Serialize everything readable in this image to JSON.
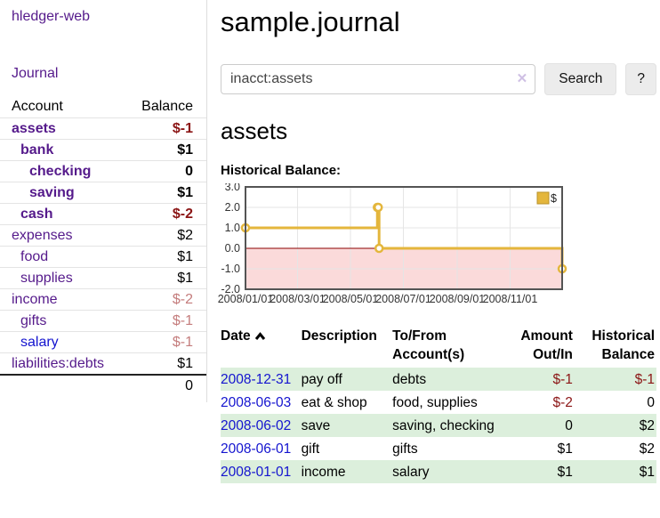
{
  "sidebar": {
    "app_title": "hledger-web",
    "journal_link": "Journal",
    "columns": {
      "account": "Account",
      "balance": "Balance"
    },
    "accounts": [
      {
        "name": "assets",
        "balance": "$-1"
      },
      {
        "name": "bank",
        "balance": "$1"
      },
      {
        "name": "checking",
        "balance": "0"
      },
      {
        "name": "saving",
        "balance": "$1"
      },
      {
        "name": "cash",
        "balance": "$-2"
      },
      {
        "name": "expenses",
        "balance": "$2"
      },
      {
        "name": "food",
        "balance": "$1"
      },
      {
        "name": "supplies",
        "balance": "$1"
      },
      {
        "name": "income",
        "balance": "$-2"
      },
      {
        "name": "gifts",
        "balance": "$-1"
      },
      {
        "name": "salary",
        "balance": "$-1"
      },
      {
        "name": "liabilities:debts",
        "balance": "$1"
      }
    ],
    "total": "0"
  },
  "header": {
    "title": "sample.journal"
  },
  "search": {
    "value": "inacct:assets",
    "clear_icon": "✕",
    "search_button": "Search",
    "help_button": "?"
  },
  "account_page": {
    "heading": "assets",
    "chart_label": "Historical Balance:"
  },
  "chart_data": {
    "type": "line",
    "step": true,
    "title": "Historical Balance:",
    "series": [
      {
        "name": "$",
        "color": "#e4b63c",
        "points": [
          [
            "2008-01-01",
            1
          ],
          [
            "2008-06-01",
            2
          ],
          [
            "2008-06-02",
            2
          ],
          [
            "2008-06-03",
            0
          ],
          [
            "2008-12-31",
            -1
          ]
        ]
      }
    ],
    "xrange": [
      "2008-01-01",
      "2008-12-31"
    ],
    "ylim": [
      -2,
      3
    ],
    "yticks": [
      3.0,
      2.0,
      1.0,
      0.0,
      -1.0,
      -2.0
    ],
    "xticks": [
      {
        "label": "2008/01/01",
        "date": "2008-01-01"
      },
      {
        "label": "2008/03/01",
        "date": "2008-03-01"
      },
      {
        "label": "2008/05/01",
        "date": "2008-05-01"
      },
      {
        "label": "2008/07/01",
        "date": "2008-07-01"
      },
      {
        "label": "2008/09/01",
        "date": "2008-09-01"
      },
      {
        "label": "2008/11/01",
        "date": "2008-11-01"
      }
    ],
    "grid": true,
    "zero_line_color": "#8b0000",
    "negative_fill": "#fbdada",
    "legend": {
      "label": "$",
      "position": "top-right"
    }
  },
  "register": {
    "columns": {
      "date": "Date",
      "description": "Description",
      "accounts": "To/From Account(s)",
      "amount": "Amount Out/In",
      "balance": "Historical Balance"
    },
    "rows": [
      {
        "date": "2008-12-31",
        "description": "pay off",
        "accounts": "debts",
        "amount": "$-1",
        "balance": "$-1"
      },
      {
        "date": "2008-06-03",
        "description": "eat & shop",
        "accounts": "food, supplies",
        "amount": "$-2",
        "balance": "0"
      },
      {
        "date": "2008-06-02",
        "description": "save",
        "accounts": "saving, checking",
        "amount": "0",
        "balance": "$2"
      },
      {
        "date": "2008-06-01",
        "description": "gift",
        "accounts": "gifts",
        "amount": "$1",
        "balance": "$2"
      },
      {
        "date": "2008-01-01",
        "description": "income",
        "accounts": "salary",
        "amount": "$1",
        "balance": "$1"
      }
    ]
  }
}
